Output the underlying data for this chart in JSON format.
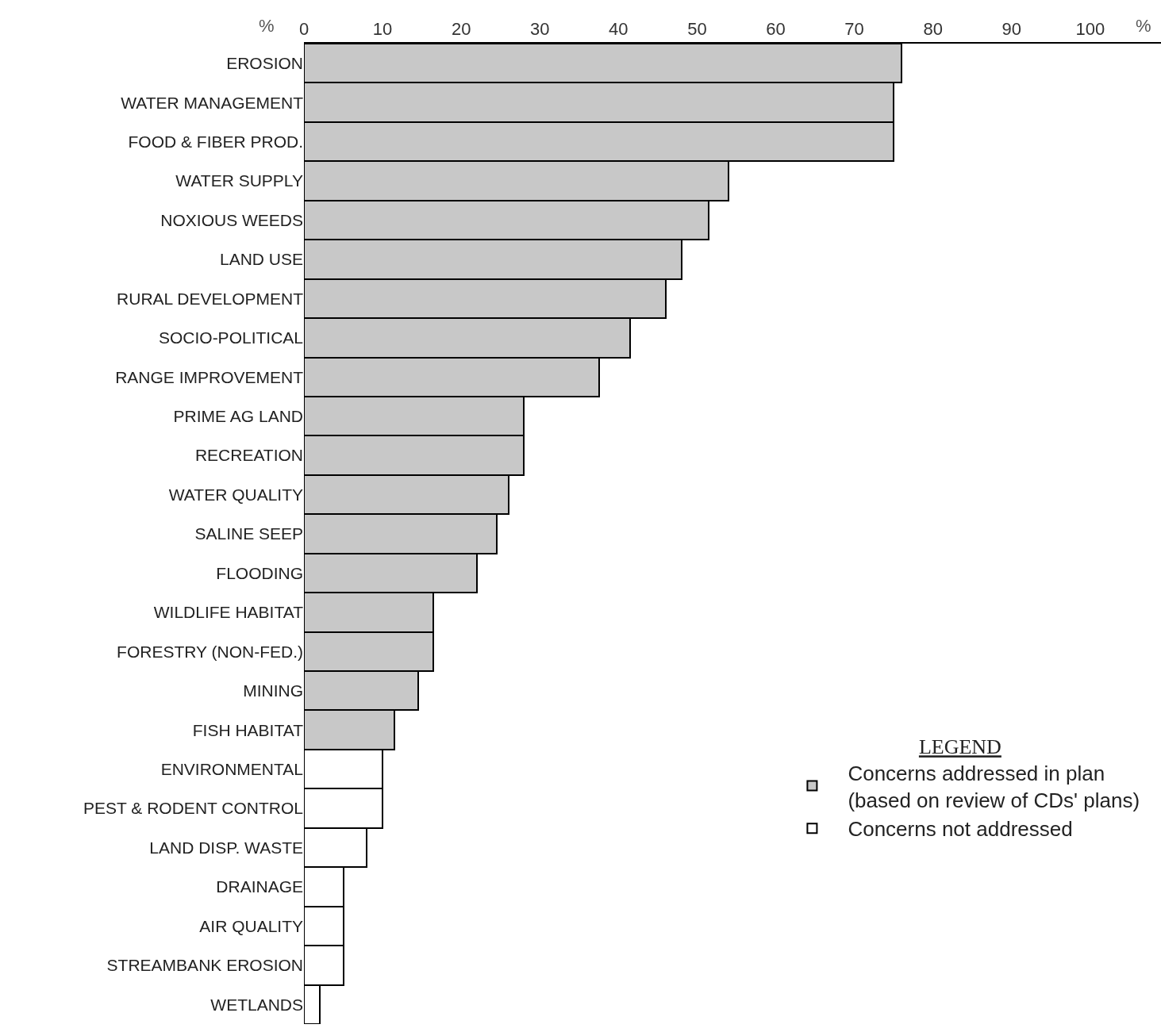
{
  "chart_data": {
    "type": "bar",
    "orientation": "horizontal",
    "categories": [
      "EROSION",
      "WATER MANAGEMENT",
      "FOOD & FIBER PROD.",
      "WATER SUPPLY",
      "NOXIOUS WEEDS",
      "LAND USE",
      "RURAL DEVELOPMENT",
      "SOCIO-POLITICAL",
      "RANGE IMPROVEMENT",
      "PRIME AG LAND",
      "RECREATION",
      "WATER QUALITY",
      "SALINE SEEP",
      "FLOODING",
      "WILDLIFE HABITAT",
      "FORESTRY (NON-FED.)",
      "MINING",
      "FISH HABITAT",
      "ENVIRONMENTAL",
      "PEST & RODENT CONTROL",
      "LAND DISP. WASTE",
      "DRAINAGE",
      "AIR QUALITY",
      "STREAMBANK EROSION",
      "WETLANDS"
    ],
    "series": [
      {
        "name": "Concerns addressed in plan\n(based on review of CDs' plans)",
        "color": "#c8c8c8",
        "values": [
          76,
          75,
          75,
          54,
          51.5,
          48,
          46,
          41.5,
          37.5,
          28,
          28,
          26,
          24.5,
          22,
          16.5,
          16.5,
          14.5,
          11.5,
          null,
          null,
          null,
          null,
          null,
          null,
          null
        ]
      },
      {
        "name": "Concerns not addressed",
        "color": "#ffffff",
        "values": [
          null,
          null,
          null,
          null,
          null,
          null,
          null,
          null,
          null,
          null,
          null,
          null,
          null,
          null,
          null,
          null,
          null,
          null,
          10,
          10,
          8,
          5,
          5,
          5,
          2
        ]
      }
    ],
    "legend_title": "LEGEND",
    "legend": "bottom right",
    "xlim": [
      0,
      109
    ],
    "xticks": [
      0,
      10,
      20,
      30,
      40,
      50,
      60,
      70,
      80,
      90,
      100
    ],
    "annotations": [
      "%",
      "%"
    ]
  }
}
